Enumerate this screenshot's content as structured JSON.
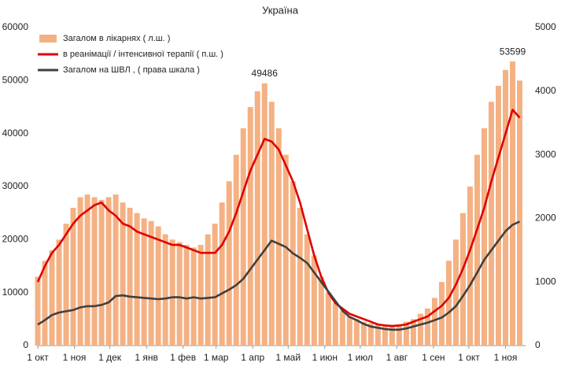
{
  "chart_data": {
    "type": "bar-line",
    "title": "Україна",
    "x": [
      0,
      6,
      12,
      18,
      24,
      30,
      36,
      42,
      48,
      54,
      60,
      66,
      72,
      78,
      84,
      90,
      96,
      102,
      108,
      114,
      120,
      126,
      132,
      138,
      144,
      150,
      156,
      162,
      168,
      174,
      180,
      186,
      192,
      198,
      204,
      210,
      216,
      222,
      228,
      234,
      240,
      246,
      252,
      258,
      264,
      270,
      276,
      282,
      288,
      294,
      300,
      306,
      312,
      318,
      324,
      330,
      336,
      342,
      348,
      354,
      360,
      366,
      372,
      378,
      384,
      390,
      396,
      402,
      408
    ],
    "xlim": [
      0,
      413
    ],
    "xticks": [
      {
        "value": 0,
        "label": "1 окт"
      },
      {
        "value": 31,
        "label": "1 ноя"
      },
      {
        "value": 61,
        "label": "1 дек"
      },
      {
        "value": 92,
        "label": "1 янв"
      },
      {
        "value": 123,
        "label": "1 фев"
      },
      {
        "value": 151,
        "label": "1 мар"
      },
      {
        "value": 182,
        "label": "1 апр"
      },
      {
        "value": 212,
        "label": "1 май"
      },
      {
        "value": 243,
        "label": "1 июн"
      },
      {
        "value": 273,
        "label": "1 июл"
      },
      {
        "value": 304,
        "label": "1 авг"
      },
      {
        "value": 335,
        "label": "1 сен"
      },
      {
        "value": 365,
        "label": "1 окт"
      },
      {
        "value": 396,
        "label": "1 ноя"
      }
    ],
    "ylim": [
      0,
      60000
    ],
    "yticks": [
      0,
      10000,
      20000,
      30000,
      40000,
      50000,
      60000
    ],
    "y2lim": [
      0,
      5000
    ],
    "y2ticks": [
      0,
      1000,
      2000,
      3000,
      4000,
      5000
    ],
    "legend": "top-left",
    "series": [
      {
        "name": "Загалом в лікарнях ( л.ш. )",
        "kind": "bar",
        "color": "#f4b183",
        "values": [
          13000,
          16000,
          18000,
          20000,
          23000,
          26000,
          28000,
          28500,
          28000,
          27500,
          28000,
          28500,
          27000,
          26000,
          25000,
          24000,
          23500,
          22500,
          21000,
          20000,
          19500,
          19000,
          18500,
          19000,
          21000,
          23000,
          27000,
          31000,
          36000,
          41000,
          45000,
          48000,
          49486,
          46000,
          41000,
          36000,
          31000,
          26000,
          21000,
          17000,
          13000,
          10000,
          8000,
          6500,
          5500,
          5000,
          4500,
          4200,
          4000,
          3800,
          3800,
          4000,
          4500,
          5000,
          6000,
          7000,
          9000,
          12000,
          16000,
          20000,
          25000,
          30000,
          36000,
          41000,
          46000,
          49000,
          52000,
          53599,
          50000
        ]
      },
      {
        "name": "в реанімації / інтенсивної терапії ( п.ш. )",
        "kind": "line",
        "color": "#e00000",
        "values": [
          12000,
          15000,
          17500,
          19000,
          21000,
          23000,
          24500,
          25500,
          26500,
          27000,
          25500,
          24500,
          23000,
          22500,
          21500,
          21000,
          20500,
          20000,
          19500,
          19000,
          19000,
          18500,
          18000,
          17500,
          17500,
          17500,
          19000,
          21500,
          25000,
          29000,
          33000,
          36000,
          39000,
          38500,
          37000,
          34000,
          31000,
          27000,
          22000,
          17000,
          13000,
          10000,
          8000,
          7000,
          6000,
          5500,
          5000,
          4500,
          4000,
          3800,
          3700,
          3800,
          4000,
          4500,
          5000,
          5500,
          6500,
          7500,
          9000,
          11500,
          14500,
          18000,
          22000,
          26000,
          31000,
          35500,
          40000,
          44500,
          43000
        ]
      },
      {
        "name": "Загалом на ШВЛ , ( права шкала )",
        "kind": "line",
        "axis": "y2",
        "color": "#404040",
        "values": [
          330,
          400,
          480,
          520,
          540,
          560,
          600,
          620,
          620,
          640,
          680,
          780,
          790,
          770,
          760,
          750,
          740,
          730,
          740,
          760,
          760,
          740,
          760,
          740,
          750,
          760,
          820,
          880,
          950,
          1050,
          1200,
          1350,
          1500,
          1650,
          1600,
          1550,
          1450,
          1380,
          1300,
          1150,
          1000,
          850,
          700,
          550,
          450,
          400,
          340,
          300,
          280,
          260,
          250,
          250,
          270,
          300,
          330,
          360,
          400,
          440,
          520,
          620,
          780,
          950,
          1150,
          1350,
          1500,
          1650,
          1800,
          1900,
          1950
        ]
      }
    ],
    "annotations": [
      {
        "x": 192,
        "text": "49486"
      },
      {
        "x": 402,
        "text": "53599"
      }
    ]
  }
}
